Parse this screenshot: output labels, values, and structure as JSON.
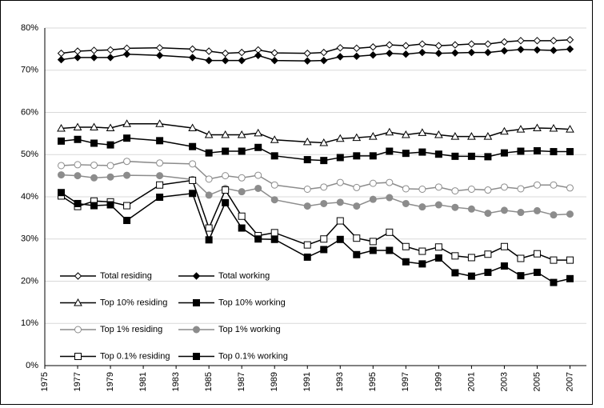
{
  "chart_data": {
    "type": "line",
    "x": [
      1976,
      1977,
      1978,
      1979,
      1980,
      1982,
      1984,
      1985,
      1986,
      1987,
      1988,
      1989,
      1991,
      1992,
      1993,
      1994,
      1995,
      1996,
      1997,
      1998,
      1999,
      2000,
      2001,
      2002,
      2003,
      2004,
      2005,
      2006,
      2007
    ],
    "xlim": [
      1975,
      2008
    ],
    "xticks": [
      1975,
      1977,
      1979,
      1981,
      1983,
      1985,
      1987,
      1989,
      1991,
      1993,
      1995,
      1997,
      1999,
      2001,
      2003,
      2005,
      2007
    ],
    "ylim": [
      0,
      80
    ],
    "yticks": [
      {
        "value": 0,
        "label": "0%"
      },
      {
        "value": 10,
        "label": "10%"
      },
      {
        "value": 20,
        "label": "20%"
      },
      {
        "value": 30,
        "label": "30%"
      },
      {
        "value": 40,
        "label": "40%"
      },
      {
        "value": 50,
        "label": "50%"
      },
      {
        "value": 60,
        "label": "60%"
      },
      {
        "value": 70,
        "label": "70%"
      },
      {
        "value": 80,
        "label": "80%"
      }
    ],
    "grid": true,
    "legend": "lower-left",
    "series": [
      {
        "name": "Total residing",
        "color": "#000000",
        "marker": "diamond",
        "filled": false,
        "values": [
          74.0,
          74.5,
          74.7,
          74.8,
          75.2,
          75.3,
          75.0,
          74.5,
          74.0,
          74.2,
          74.8,
          74.1,
          74.0,
          74.2,
          75.3,
          75.2,
          75.5,
          76.0,
          75.8,
          76.2,
          75.8,
          76.0,
          76.2,
          76.2,
          76.7,
          77.0,
          77.0,
          77.0,
          77.2
        ]
      },
      {
        "name": "Total working",
        "color": "#000000",
        "marker": "diamond",
        "filled": true,
        "values": [
          72.5,
          73.0,
          73.0,
          73.0,
          73.8,
          73.5,
          73.0,
          72.3,
          72.3,
          72.3,
          73.5,
          72.3,
          72.2,
          72.3,
          73.2,
          73.3,
          73.6,
          74.0,
          73.8,
          74.2,
          74.0,
          74.1,
          74.2,
          74.2,
          74.6,
          74.9,
          74.8,
          74.7,
          75.0
        ]
      },
      {
        "name": "Top 10% residing",
        "color": "#000000",
        "marker": "triangle",
        "filled": false,
        "values": [
          56.2,
          56.5,
          56.5,
          56.3,
          57.3,
          57.3,
          56.3,
          54.7,
          54.7,
          54.7,
          55.1,
          53.5,
          53.0,
          52.8,
          53.8,
          54.0,
          54.3,
          55.3,
          54.7,
          55.2,
          54.7,
          54.3,
          54.3,
          54.3,
          55.5,
          56.0,
          56.3,
          56.2,
          56.0
        ]
      },
      {
        "name": "Top 10% working",
        "color": "#000000",
        "marker": "square",
        "filled": true,
        "values": [
          53.2,
          53.6,
          52.7,
          52.3,
          53.9,
          53.3,
          51.9,
          50.4,
          50.8,
          50.8,
          51.7,
          49.7,
          48.8,
          48.6,
          49.3,
          49.7,
          49.7,
          50.8,
          50.3,
          50.6,
          50.1,
          49.6,
          49.6,
          49.5,
          50.4,
          50.8,
          50.9,
          50.7,
          50.7
        ]
      },
      {
        "name": "Top 1% residing",
        "color": "#8c8c8c",
        "marker": "circle",
        "filled": false,
        "values": [
          47.4,
          47.6,
          47.5,
          47.4,
          48.4,
          48.0,
          47.8,
          44.2,
          45.0,
          44.5,
          45.1,
          42.8,
          41.8,
          42.3,
          43.4,
          42.2,
          43.2,
          43.4,
          41.9,
          41.8,
          42.3,
          41.4,
          41.8,
          41.6,
          42.3,
          41.9,
          42.8,
          42.8,
          42.1
        ]
      },
      {
        "name": "Top 1% working",
        "color": "#8c8c8c",
        "marker": "circle",
        "filled": true,
        "values": [
          45.2,
          45.0,
          44.5,
          44.7,
          45.1,
          45.0,
          44.1,
          40.4,
          42.0,
          41.2,
          42.0,
          39.3,
          37.8,
          38.4,
          38.7,
          37.8,
          39.4,
          39.8,
          38.4,
          37.6,
          38.1,
          37.5,
          37.1,
          36.1,
          36.8,
          36.3,
          36.7,
          35.7,
          35.9
        ]
      },
      {
        "name": "Top 0.1% residing",
        "color": "#000000",
        "marker": "square",
        "filled": false,
        "values": [
          40.2,
          37.7,
          39.0,
          38.8,
          37.9,
          42.8,
          43.9,
          32.6,
          41.6,
          35.4,
          30.8,
          31.5,
          28.6,
          30.0,
          34.3,
          30.2,
          29.4,
          31.6,
          28.2,
          27.1,
          28.1,
          26.0,
          25.6,
          26.4,
          28.2,
          25.4,
          26.5,
          25.0,
          25.0
        ]
      },
      {
        "name": "Top 0.1% working",
        "color": "#000000",
        "marker": "square",
        "filled": true,
        "values": [
          41.0,
          38.4,
          37.9,
          38.1,
          34.4,
          39.9,
          40.8,
          29.8,
          38.6,
          32.6,
          30.0,
          29.9,
          25.7,
          27.5,
          29.9,
          26.3,
          27.3,
          27.3,
          24.6,
          24.1,
          25.5,
          22.0,
          21.2,
          22.1,
          23.6,
          21.3,
          22.1,
          19.7,
          20.6
        ]
      }
    ]
  }
}
